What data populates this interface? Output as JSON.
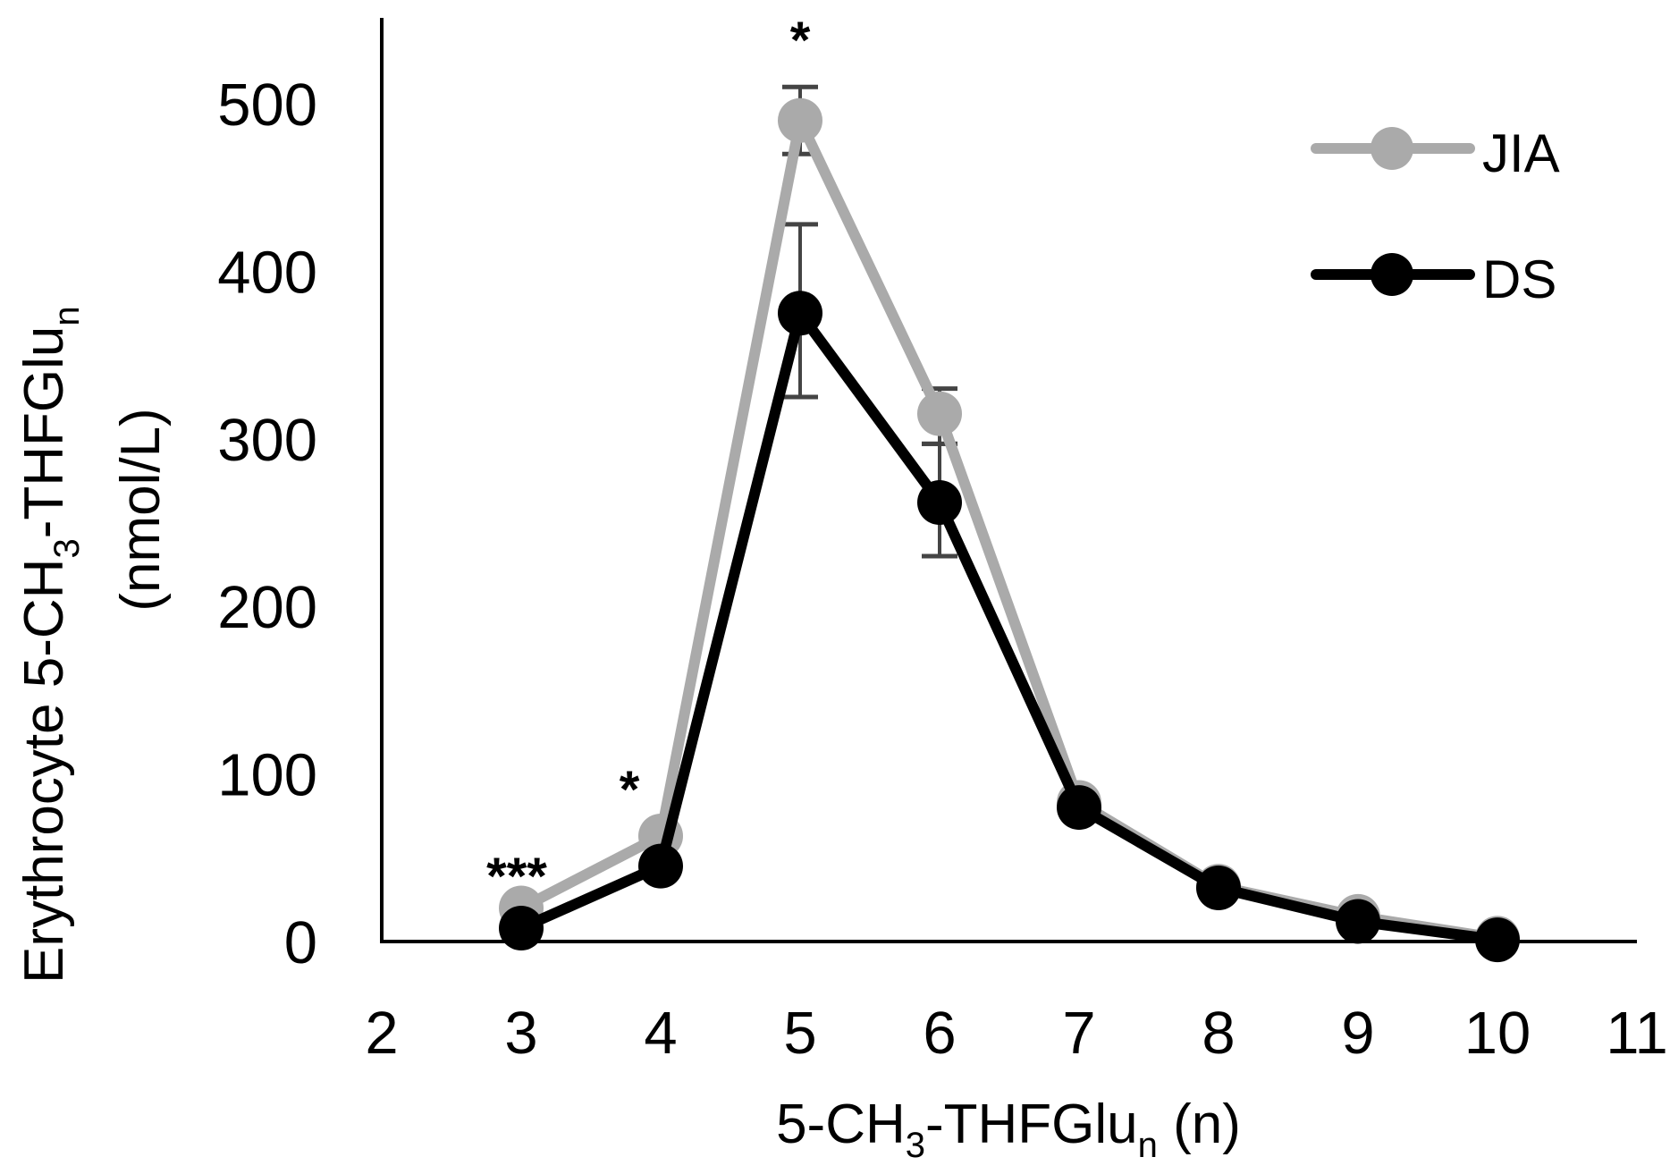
{
  "chart_data": {
    "type": "line",
    "title": "",
    "xlabel": "5-CH3-THFGlun (n)",
    "ylabel": "Erythrocyte 5-CH3-THFGlun (nmol/L)",
    "xlim": [
      2,
      11
    ],
    "ylim": [
      0,
      500
    ],
    "x_ticks": [
      "2",
      "3",
      "4",
      "5",
      "6",
      "7",
      "8",
      "9",
      "10",
      "11"
    ],
    "y_ticks": [
      "0",
      "100",
      "200",
      "300",
      "400",
      "500"
    ],
    "grid": false,
    "legend_position": "upper right",
    "x": [
      3,
      4,
      5,
      6,
      7,
      8,
      9,
      10
    ],
    "series": [
      {
        "name": "JIA",
        "color": "#aaaaaa",
        "values": [
          20,
          63,
          490,
          315,
          83,
          33,
          15,
          2
        ],
        "error_upper": [
          null,
          null,
          510,
          330,
          null,
          null,
          null,
          null
        ],
        "error_lower": [
          null,
          null,
          470,
          297,
          null,
          null,
          null,
          null
        ]
      },
      {
        "name": "DS",
        "color": "#000000",
        "values": [
          8,
          45,
          375,
          262,
          80,
          32,
          12,
          1
        ],
        "error_upper": [
          null,
          null,
          428,
          297,
          null,
          null,
          null,
          null
        ],
        "error_lower": [
          null,
          null,
          325,
          230,
          null,
          null,
          null,
          null
        ]
      }
    ],
    "annotations": [
      {
        "x": 3,
        "text": "***"
      },
      {
        "x": 4,
        "text": "*"
      },
      {
        "x": 5,
        "text": "*"
      }
    ]
  },
  "labels": {
    "ylabel_line1": "Erythrocyte 5-CH",
    "ylabel_sub3": "3",
    "ylabel_mid": "-THFGlu",
    "ylabel_subn": "n",
    "ylabel_line2": "(nmol/L)",
    "xlabel_a": "5-CH",
    "xlabel_sub3": "3",
    "xlabel_b": "-THFGlu",
    "xlabel_subn": "n",
    "xlabel_c": " (n)"
  },
  "legend": {
    "jia": "JIA",
    "ds": "DS"
  }
}
